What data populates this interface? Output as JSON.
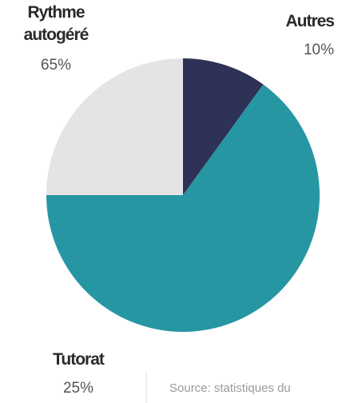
{
  "chart_data": {
    "type": "pie",
    "categories": [
      "Autres",
      "Rythme autogéré",
      "Tutorat"
    ],
    "values": [
      10,
      65,
      25
    ],
    "value_labels": [
      "10%",
      "65%",
      "25%"
    ],
    "colors": [
      "#2e3256",
      "#2796a3",
      "#e4e4e6"
    ],
    "source": "Source: statistiques du"
  }
}
